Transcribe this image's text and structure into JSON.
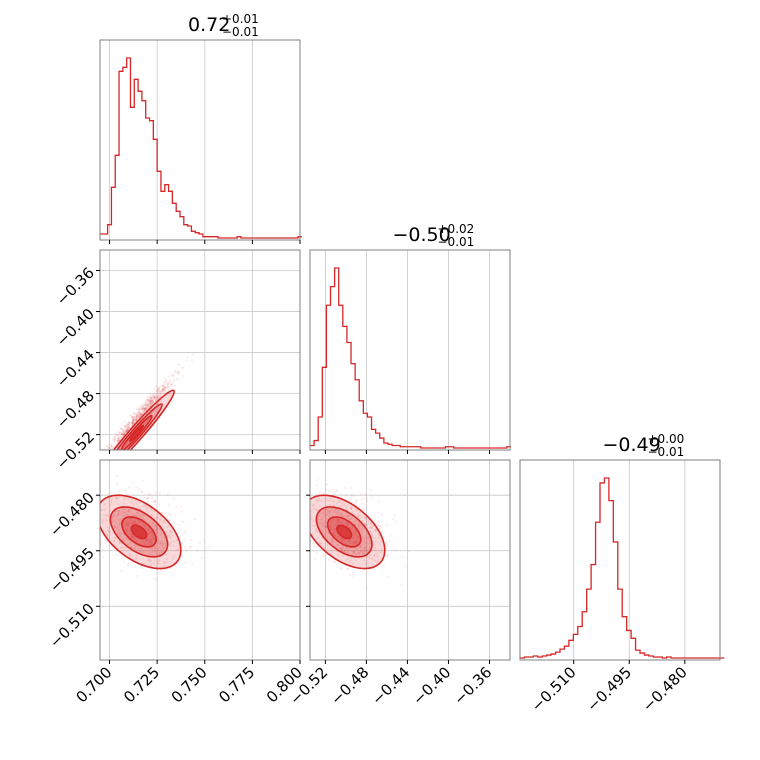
{
  "chart_data": {
    "type": "corner",
    "color": "#d62728",
    "parameters": [
      {
        "median": "0.72",
        "upper": "+0.01",
        "lower": "−0.01",
        "range": [
          0.695,
          0.8
        ],
        "ticks": [
          0.7,
          0.725,
          0.75,
          0.775,
          0.8
        ],
        "tick_labels": [
          "0.700",
          "0.725",
          "0.750",
          "0.775",
          "0.800"
        ]
      },
      {
        "median": "−0.50",
        "upper": "+0.02",
        "lower": "−0.01",
        "range": [
          -0.535,
          -0.34
        ],
        "ticks": [
          -0.52,
          -0.48,
          -0.44,
          -0.4,
          -0.36
        ],
        "tick_labels": [
          "−0.52",
          "−0.48",
          "−0.44",
          "−0.40",
          "−0.36"
        ]
      },
      {
        "median": "−0.49",
        "upper": "+0.00",
        "lower": "−0.01",
        "range": [
          -0.5245,
          -0.4705
        ],
        "ticks": [
          -0.51,
          -0.495,
          -0.48
        ],
        "tick_labels": [
          "−0.510",
          "−0.495",
          "−0.480"
        ]
      }
    ],
    "hist_1d": [
      {
        "bin_width": 0.002,
        "bin_start": 0.695,
        "counts": [
          3,
          3,
          10,
          38,
          62,
          125,
          128,
          135,
          98,
          119,
          110,
          103,
          90,
          88,
          74,
          50,
          35,
          40,
          35,
          26,
          20,
          16,
          10,
          9,
          5,
          4,
          3,
          1,
          1,
          1,
          1,
          0,
          0,
          0,
          0,
          0,
          1,
          0,
          0,
          0,
          0,
          0,
          0,
          0,
          0,
          0,
          0,
          0,
          0,
          0,
          0,
          0,
          1
        ]
      },
      {
        "bin_width": 0.004,
        "bin_start": -0.535,
        "counts": [
          2,
          6,
          25,
          65,
          115,
          130,
          145,
          115,
          98,
          85,
          68,
          55,
          38,
          28,
          25,
          15,
          12,
          8,
          4,
          3,
          2,
          2,
          1,
          1,
          1,
          1,
          1,
          0,
          0,
          0,
          0,
          0,
          0,
          1,
          1,
          0,
          0,
          0,
          0,
          0,
          0,
          0,
          0,
          0,
          0,
          0,
          0,
          0,
          1
        ]
      },
      {
        "bin_width": 0.0012,
        "bin_start": -0.5245,
        "counts": [
          0,
          1,
          1,
          2,
          1,
          2,
          3,
          4,
          6,
          9,
          12,
          18,
          24,
          32,
          47,
          70,
          95,
          138,
          178,
          183,
          160,
          118,
          70,
          42,
          28,
          20,
          8,
          5,
          3,
          2,
          1,
          1,
          0,
          1,
          0,
          0,
          0,
          0,
          0,
          0,
          0,
          0,
          0,
          0,
          0,
          0
        ]
      }
    ],
    "correlation_rho": {
      "p0_p1": 0.97,
      "p0_p2": -0.5,
      "p1_p2": -0.5
    }
  }
}
